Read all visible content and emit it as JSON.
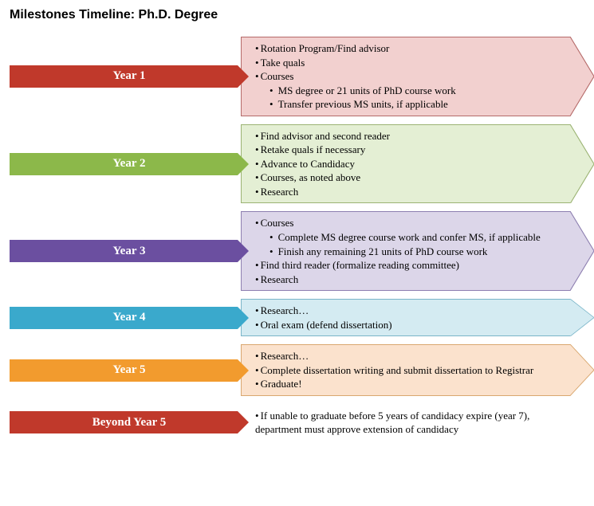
{
  "title": "Milestones Timeline: Ph.D. Degree",
  "rows": [
    {
      "label": "Year 1",
      "label_color": "#c0392b",
      "detail_bg": "#f2d0cf",
      "detail_border": "#b56a69",
      "has_big_arrow": true,
      "items": [
        {
          "lvl": 1,
          "text": "Rotation Program/Find advisor"
        },
        {
          "lvl": 1,
          "text": "Take quals"
        },
        {
          "lvl": 1,
          "text": "Courses"
        },
        {
          "lvl": 2,
          "text": "MS degree or 21 units of PhD course work"
        },
        {
          "lvl": 2,
          "text": "Transfer previous MS units, if applicable"
        }
      ]
    },
    {
      "label": "Year 2",
      "label_color": "#8cb84a",
      "detail_bg": "#e4efd4",
      "detail_border": "#9bb373",
      "has_big_arrow": true,
      "items": [
        {
          "lvl": 1,
          "text": "Find advisor and second reader"
        },
        {
          "lvl": 1,
          "text": "Retake quals if necessary"
        },
        {
          "lvl": 1,
          "text": "Advance to Candidacy"
        },
        {
          "lvl": 1,
          "text": "Courses, as noted above"
        },
        {
          "lvl": 1,
          "text": "Research"
        }
      ]
    },
    {
      "label": "Year 3",
      "label_color": "#6b4fa0",
      "detail_bg": "#dcd6e9",
      "detail_border": "#8d7fb0",
      "has_big_arrow": true,
      "items": [
        {
          "lvl": 1,
          "text": "Courses"
        },
        {
          "lvl": 2,
          "text": "Complete MS degree course work and confer MS, if applicable"
        },
        {
          "lvl": 2,
          "text": "Finish any remaining 21 units of PhD course work"
        },
        {
          "lvl": 1,
          "text": "Find third reader (formalize reading committee)"
        },
        {
          "lvl": 1,
          "text": "Research"
        }
      ]
    },
    {
      "label": "Year 4",
      "label_color": "#3aa9cc",
      "detail_bg": "#d4ebf2",
      "detail_border": "#79b5c8",
      "has_big_arrow": true,
      "items": [
        {
          "lvl": 1,
          "text": "Research…"
        },
        {
          "lvl": 1,
          "text": "Oral exam (defend dissertation)"
        }
      ]
    },
    {
      "label": "Year 5",
      "label_color": "#f29b2e",
      "detail_bg": "#fbe2cd",
      "detail_border": "#d9a76f",
      "has_big_arrow": true,
      "items": [
        {
          "lvl": 1,
          "text": "Research…"
        },
        {
          "lvl": 1,
          "text": "Complete dissertation writing and submit dissertation to Registrar"
        },
        {
          "lvl": 1,
          "text": "Graduate!"
        }
      ]
    },
    {
      "label": "Beyond Year 5",
      "label_color": "#c0392b",
      "detail_bg": "transparent",
      "detail_border": "transparent",
      "has_big_arrow": false,
      "items": [
        {
          "lvl": 1,
          "text": "If unable to graduate before 5 years of candidacy expire (year 7), department must approve extension of candidacy"
        }
      ]
    }
  ]
}
